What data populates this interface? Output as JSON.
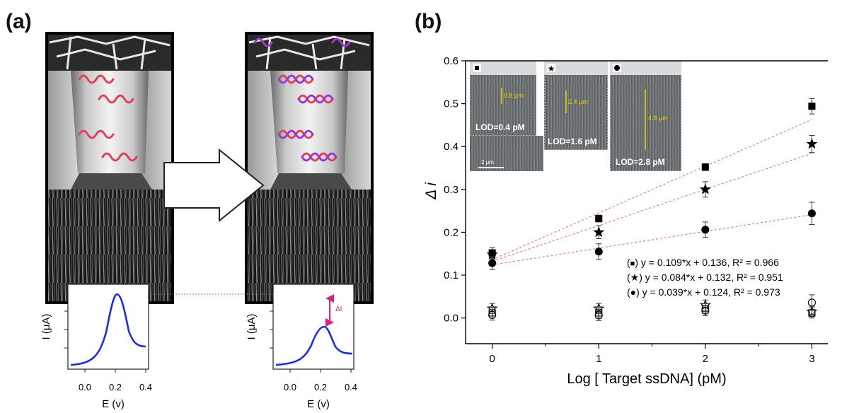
{
  "panels": {
    "a_label": "(a)",
    "b_label": "(b)"
  },
  "panel_a": {
    "cv_before": {
      "ylabel": "I (μA)",
      "xlabel": "E (v)",
      "ticks": [
        "0.0",
        "0.2",
        "0.4"
      ]
    },
    "cv_after": {
      "ylabel": "I (μA)",
      "xlabel": "E (v)",
      "ticks": [
        "0.0",
        "0.2",
        "0.4"
      ],
      "delta_label": "ΔI"
    }
  },
  "inset": {
    "panels": [
      {
        "marker": "square",
        "thickness": "0.8 μm",
        "lod": "LOD=0.4 pM"
      },
      {
        "marker": "star",
        "thickness": "2.4 μm",
        "lod": "LOD=1.6 pM"
      },
      {
        "marker": "circle",
        "thickness": "4.8 μm",
        "lod": "LOD=2.8 pM"
      }
    ],
    "scalebar": "2 μm"
  },
  "chart_data": {
    "type": "scatter",
    "title": "",
    "xlabel": "Log [ Target ssDNA] (pM)",
    "ylabel": "Δ i",
    "xlim": [
      -0.25,
      3.15
    ],
    "ylim": [
      -0.06,
      0.6
    ],
    "xticks": [
      "0",
      "1",
      "2",
      "3"
    ],
    "yticks": [
      "0.0",
      "0.1",
      "0.2",
      "0.3",
      "0.4",
      "0.5",
      "0.6"
    ],
    "grid": false,
    "legend_position": "lower-right",
    "series": [
      {
        "name": "■",
        "marker": "square",
        "filled": true,
        "x": [
          0,
          1,
          2,
          3
        ],
        "y": [
          0.152,
          0.232,
          0.352,
          0.494
        ],
        "err": [
          0.012,
          0.008,
          0.008,
          0.018
        ],
        "fit": {
          "slope": 0.109,
          "intercept": 0.136
        },
        "equation": "y = 0.109*x + 0.136, R² = 0.966"
      },
      {
        "name": "★",
        "marker": "star",
        "filled": true,
        "x": [
          0,
          1,
          2,
          3
        ],
        "y": [
          0.148,
          0.2,
          0.3,
          0.406
        ],
        "err": [
          0.01,
          0.015,
          0.018,
          0.02
        ],
        "fit": {
          "slope": 0.084,
          "intercept": 0.132
        },
        "equation": "y = 0.084*x + 0.132, R² = 0.951"
      },
      {
        "name": "●",
        "marker": "circle",
        "filled": true,
        "x": [
          0,
          1,
          2,
          3
        ],
        "y": [
          0.128,
          0.155,
          0.206,
          0.244
        ],
        "err": [
          0.015,
          0.018,
          0.018,
          0.026
        ],
        "fit": {
          "slope": 0.039,
          "intercept": 0.124
        },
        "equation": "y = 0.039*x + 0.124, R² = 0.973"
      },
      {
        "name": "□",
        "marker": "square",
        "filled": false,
        "x": [
          0,
          1,
          2,
          3
        ],
        "y": [
          0.012,
          0.012,
          0.022,
          0.012
        ],
        "err": [
          0.012,
          0.012,
          0.012,
          0.012
        ]
      },
      {
        "name": "☆",
        "marker": "star",
        "filled": false,
        "x": [
          0,
          1,
          2,
          3
        ],
        "y": [
          0.022,
          0.022,
          0.03,
          0.015
        ],
        "err": [
          0.012,
          0.012,
          0.012,
          0.012
        ]
      },
      {
        "name": "○",
        "marker": "circle",
        "filled": false,
        "x": [
          0,
          1,
          2,
          3
        ],
        "y": [
          0.007,
          0.006,
          0.017,
          0.036
        ],
        "err": [
          0.012,
          0.012,
          0.012,
          0.018
        ]
      }
    ]
  }
}
